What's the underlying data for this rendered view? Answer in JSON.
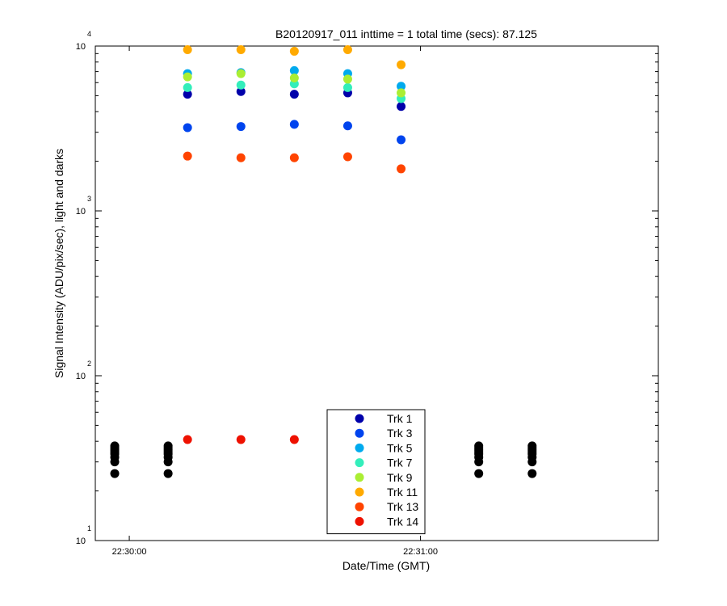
{
  "chart_data": {
    "type": "scatter",
    "title": "B20120917_011 inttime = 1 total time (secs): 87.125",
    "xlabel": "Date/Time (GMT)",
    "ylabel": "Signal Intensity (ADU/pix/sec), light and darks",
    "yscale": "log",
    "ylim": [
      10,
      10000
    ],
    "xlim": [
      "22:29:53",
      "22:31:49"
    ],
    "x_ticks": [
      "22:30:00",
      "22:31:00"
    ],
    "y_ticks": [
      {
        "base": "10",
        "exp": "1"
      },
      {
        "base": "10",
        "exp": "2"
      },
      {
        "base": "10",
        "exp": "3"
      },
      {
        "base": "10",
        "exp": "4"
      }
    ],
    "grid": false,
    "legend_position": "bottom-center",
    "light_times": [
      "22:30:12",
      "22:30:23",
      "22:30:34",
      "22:30:45",
      "22:30:56"
    ],
    "series": [
      {
        "name": "Trk 1",
        "color": "#0000aa",
        "values": [
          5100,
          5300,
          5100,
          5200,
          4300
        ]
      },
      {
        "name": "Trk 3",
        "color": "#0044ee",
        "values": [
          3200,
          3250,
          3350,
          3280,
          2700
        ]
      },
      {
        "name": "Trk 5",
        "color": "#00aaee",
        "values": [
          6800,
          6900,
          7100,
          6800,
          5700
        ]
      },
      {
        "name": "Trk 7",
        "color": "#33eebb",
        "values": [
          5600,
          5800,
          5900,
          5600,
          4800
        ]
      },
      {
        "name": "Trk 9",
        "color": "#aaee33",
        "values": [
          6500,
          6800,
          6400,
          6300,
          5200
        ]
      },
      {
        "name": "Trk 11",
        "color": "#ffaa00",
        "values": [
          9500,
          9500,
          9300,
          9500,
          7700
        ]
      },
      {
        "name": "Trk 13",
        "color": "#ff4400",
        "values": [
          2150,
          2100,
          2100,
          2130,
          1800
        ]
      },
      {
        "name": "Trk 14",
        "color": "#ee1100",
        "values": [
          41,
          41,
          41,
          41,
          41
        ]
      }
    ],
    "darks": {
      "color": "#000000",
      "times": [
        "22:29:57",
        "22:30:08",
        "22:31:12",
        "22:31:23"
      ],
      "values": [
        25.5,
        30,
        32,
        33.5,
        34.5,
        35.5,
        36.5,
        37.5
      ]
    }
  }
}
